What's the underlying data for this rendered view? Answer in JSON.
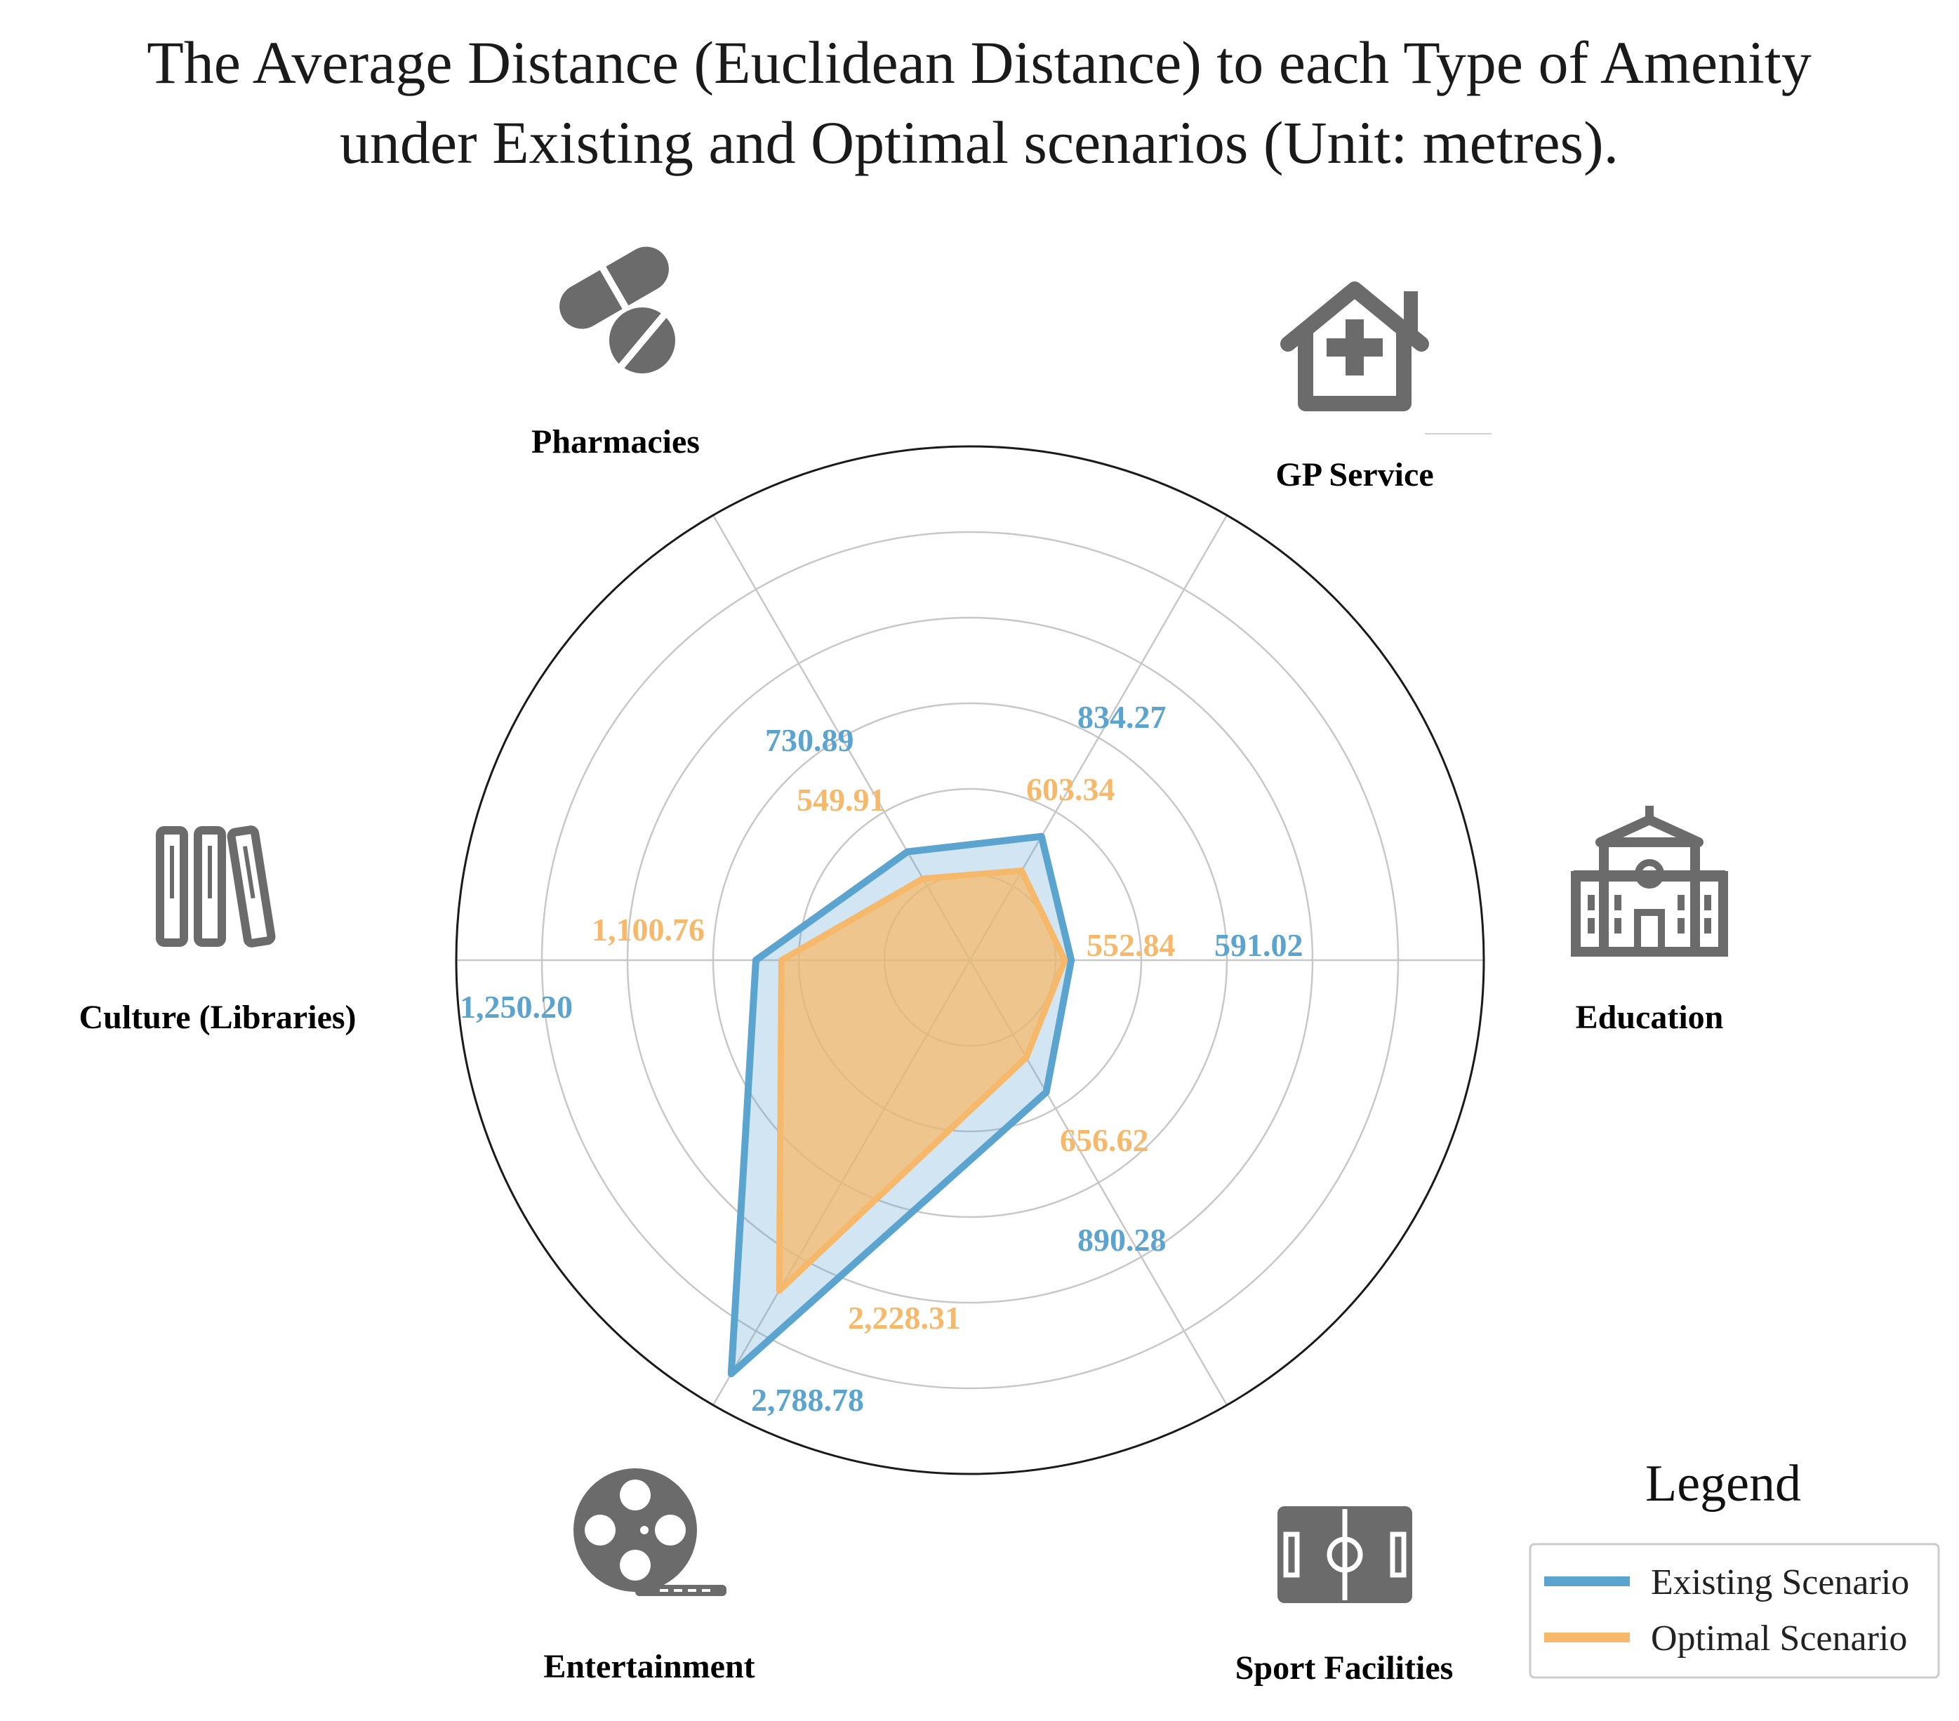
{
  "chart_data": {
    "type": "radar",
    "title_lines": [
      "The Average Distance (Euclidean Distance) to each Type of Amenity",
      "under Existing and Optimal scenarios (Unit: metres)."
    ],
    "categories": [
      "Education",
      "GP Service",
      "Pharmacies",
      "Culture (Libraries)",
      "Entertainment",
      "Sport Facilities"
    ],
    "series": [
      {
        "name": "Existing Scenario",
        "color": "#5ba4cf",
        "values": [
          591.02,
          834.27,
          730.89,
          1250.2,
          2788.78,
          890.28
        ],
        "labels": [
          "591.02",
          "834.27",
          "730.89",
          "1,250.20",
          "2,788.78",
          "890.28"
        ]
      },
      {
        "name": "Optimal Scenario",
        "color": "#f6b96b",
        "values": [
          552.84,
          603.34,
          549.91,
          1100.76,
          2228.31,
          656.62
        ],
        "labels": [
          "552.84",
          "603.34",
          "549.91",
          "1,100.76",
          "2,228.31",
          "656.62"
        ]
      }
    ],
    "rmax": 3000,
    "grid": true,
    "legend": {
      "title": "Legend",
      "position": "bottom-right"
    },
    "icons": [
      "school-icon",
      "gp-house-icon",
      "pills-icon",
      "books-icon",
      "film-reel-icon",
      "pitch-icon"
    ]
  }
}
